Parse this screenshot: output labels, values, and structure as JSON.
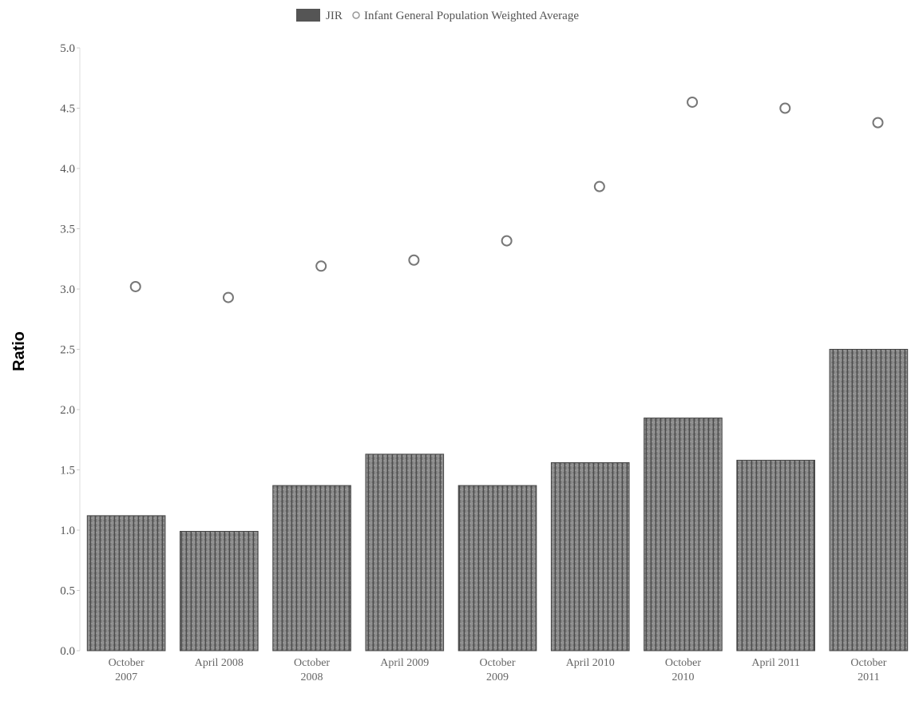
{
  "chart_data": {
    "type": "bar",
    "legend": {
      "position": "top-center",
      "bar_label": "JIR",
      "line_label": "Infant General Population Weighted Average"
    },
    "ylabel": "Ratio",
    "xlabel": "",
    "ylim": [
      0,
      5.0
    ],
    "yticks": [
      "0.0",
      "0.5",
      "1.0",
      "1.5",
      "2.0",
      "2.5",
      "3.0",
      "3.5",
      "4.0",
      "4.5",
      "5.0"
    ],
    "categories": [
      [
        "October",
        "2007"
      ],
      [
        "April 2008"
      ],
      [
        "October",
        "2008"
      ],
      [
        "April 2009"
      ],
      [
        "October",
        "2009"
      ],
      [
        "April 2010"
      ],
      [
        "October",
        "2010"
      ],
      [
        "April 2011"
      ],
      [
        "October",
        "2011"
      ]
    ],
    "series": [
      {
        "name": "JIR",
        "type": "bar",
        "color": "#8a8a8a",
        "values": [
          1.12,
          0.99,
          1.37,
          1.63,
          1.37,
          1.56,
          1.93,
          1.58,
          2.5
        ]
      },
      {
        "name": "Infant General Population Weighted Average",
        "type": "scatter",
        "color": "#9a9a9a",
        "values": [
          3.02,
          2.93,
          3.19,
          3.24,
          3.4,
          3.85,
          4.55,
          4.5,
          4.38
        ]
      }
    ],
    "grid": false
  }
}
